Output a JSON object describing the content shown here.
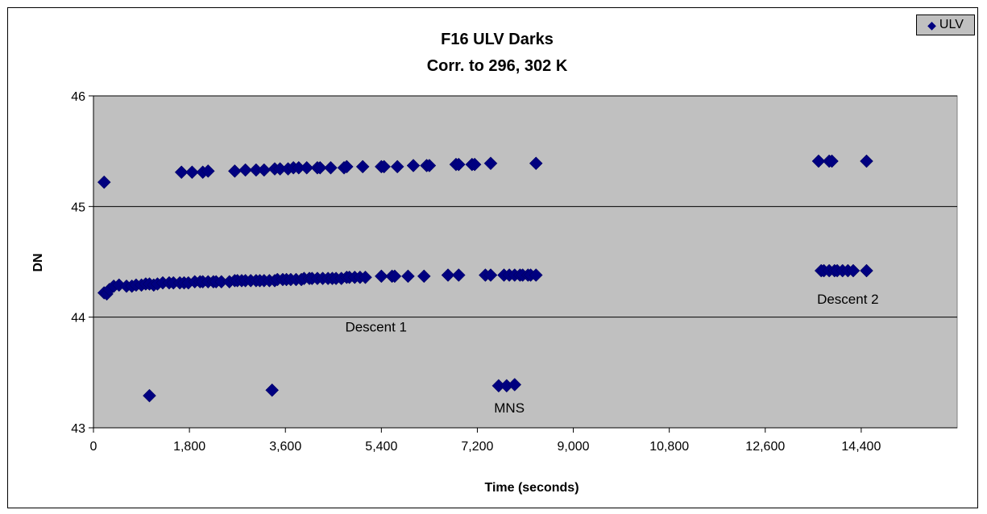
{
  "chart_data": {
    "type": "scatter",
    "title": "F16 ULV Darks",
    "subtitle": "Corr. to 296, 302 K",
    "xlabel": "Time (seconds)",
    "ylabel": "DN",
    "xlim": [
      0,
      16200
    ],
    "ylim": [
      43,
      46
    ],
    "xticks": [
      0,
      1800,
      3600,
      5400,
      7200,
      9000,
      10800,
      12600,
      14400
    ],
    "xtick_labels": [
      "0",
      "1,800",
      "3,600",
      "5,400",
      "7,200",
      "9,000",
      "10,800",
      "12,600",
      "14,400"
    ],
    "yticks": [
      43,
      44,
      45,
      46
    ],
    "ytick_labels": [
      "43",
      "44",
      "45",
      "46"
    ],
    "grid": "horizontal",
    "plot_background": "#c0c0c0",
    "marker_color": "#000080",
    "legend": {
      "position": "top-right",
      "entries": [
        "ULV"
      ]
    },
    "annotations": [
      {
        "text": "Descent 1",
        "x": 5300,
        "y": 43.87
      },
      {
        "text": "Descent 2",
        "x": 14150,
        "y": 44.12
      },
      {
        "text": "MNS",
        "x": 7800,
        "y": 43.14
      }
    ],
    "series": [
      {
        "name": "ULV",
        "x": [
          200,
          250,
          300,
          380,
          480,
          620,
          720,
          800,
          900,
          980,
          1050,
          1130,
          1200,
          1300,
          1420,
          1500,
          1620,
          1700,
          1780,
          1900,
          2000,
          2050,
          2150,
          2250,
          2300,
          2400,
          2550,
          2650,
          2700,
          2780,
          2850,
          2950,
          3050,
          3120,
          3200,
          3300,
          3400,
          3450,
          3550,
          3620,
          3700,
          3800,
          3900,
          3950,
          4050,
          4100,
          4200,
          4300,
          4400,
          4480,
          4550,
          4650,
          4750,
          4800,
          4900,
          5000,
          5100,
          5400,
          5600,
          5650,
          5900,
          6200,
          6650,
          6850,
          7350,
          7450,
          7700,
          7800,
          7900,
          8000,
          8050,
          8150,
          8200,
          8300,
          13650,
          13700,
          13800,
          13900,
          13950,
          14050,
          14150,
          14250,
          14500,
          200,
          1650,
          1850,
          2050,
          2150,
          2650,
          2850,
          3050,
          3200,
          3400,
          3500,
          3650,
          3750,
          3850,
          4000,
          4200,
          4250,
          4450,
          4700,
          4750,
          5050,
          5400,
          5450,
          5700,
          6000,
          6250,
          6300,
          6800,
          6850,
          7100,
          7150,
          7450,
          8300,
          13600,
          13800,
          13850,
          14500,
          1050,
          3350,
          7600,
          7750,
          7900
        ],
        "y": [
          44.22,
          44.21,
          44.25,
          44.28,
          44.29,
          44.28,
          44.28,
          44.29,
          44.29,
          44.3,
          44.3,
          44.29,
          44.3,
          44.31,
          44.31,
          44.31,
          44.31,
          44.31,
          44.31,
          44.32,
          44.32,
          44.32,
          44.32,
          44.32,
          44.32,
          44.32,
          44.32,
          44.33,
          44.33,
          44.33,
          44.33,
          44.33,
          44.33,
          44.33,
          44.33,
          44.33,
          44.33,
          44.34,
          44.34,
          44.34,
          44.34,
          44.34,
          44.34,
          44.35,
          44.35,
          44.35,
          44.35,
          44.35,
          44.35,
          44.35,
          44.35,
          44.35,
          44.36,
          44.36,
          44.36,
          44.36,
          44.36,
          44.37,
          44.37,
          44.37,
          44.37,
          44.37,
          44.38,
          44.38,
          44.38,
          44.38,
          44.38,
          44.38,
          44.38,
          44.38,
          44.38,
          44.38,
          44.38,
          44.38,
          44.42,
          44.42,
          44.42,
          44.42,
          44.42,
          44.42,
          44.42,
          44.42,
          44.42,
          45.22,
          45.31,
          45.31,
          45.31,
          45.32,
          45.32,
          45.33,
          45.33,
          45.33,
          45.34,
          45.34,
          45.34,
          45.35,
          45.35,
          45.35,
          45.35,
          45.35,
          45.35,
          45.35,
          45.36,
          45.36,
          45.36,
          45.36,
          45.36,
          45.37,
          45.37,
          45.37,
          45.38,
          45.38,
          45.38,
          45.38,
          45.39,
          45.39,
          45.41,
          45.41,
          45.41,
          45.41,
          43.29,
          43.34,
          43.38,
          43.38,
          43.39
        ]
      }
    ]
  }
}
